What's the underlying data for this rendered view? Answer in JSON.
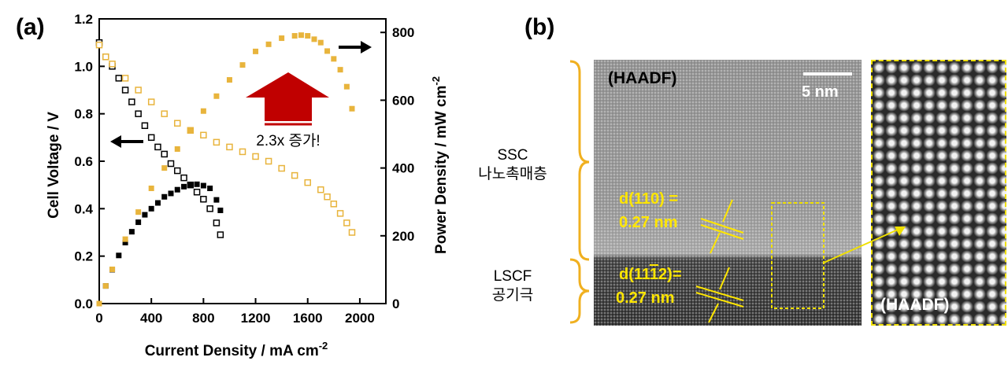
{
  "panel_a_label": "(a)",
  "panel_b_label": "(b)",
  "annotation": "2.3x 증가!",
  "chart_data": {
    "type": "scatter",
    "xlabel": "Current Density / mA cm",
    "xlabel_exp": "-2",
    "ylabel_left": "Cell Voltage / V",
    "ylabel_right": "Power Density / mW cm",
    "ylabel_right_exp": "-2",
    "xlim": [
      0,
      2200
    ],
    "ylim_left": [
      0,
      1.2
    ],
    "ylim_right": [
      0,
      840
    ],
    "x_ticks": [
      0,
      400,
      800,
      1200,
      1600,
      2000
    ],
    "x_tick_labels": [
      "0",
      "400",
      "800",
      "1200",
      "1600",
      "2000"
    ],
    "yleft_ticks": [
      0,
      0.2,
      0.4,
      0.6,
      0.8,
      1.0,
      1.2
    ],
    "yleft_tick_labels": [
      "0.0",
      "0.2",
      "0.4",
      "0.6",
      "0.8",
      "1.0",
      "1.2"
    ],
    "yright_ticks": [
      0,
      200,
      400,
      600,
      800
    ],
    "yright_tick_labels": [
      "0",
      "200",
      "400",
      "600",
      "800"
    ],
    "colors": {
      "gold": "#e8b43c",
      "black": "#000000",
      "arrow_red": "#c00000"
    },
    "series": [
      {
        "axis": "left",
        "marker": "open-square",
        "color": "#000000",
        "x": [
          0,
          50,
          100,
          150,
          200,
          250,
          300,
          350,
          400,
          450,
          500,
          550,
          600,
          650,
          700,
          750,
          800,
          850,
          900,
          930
        ],
        "y": [
          1.1,
          1.04,
          1.0,
          0.95,
          0.9,
          0.85,
          0.8,
          0.75,
          0.7,
          0.66,
          0.63,
          0.59,
          0.56,
          0.53,
          0.5,
          0.47,
          0.44,
          0.4,
          0.34,
          0.29
        ]
      },
      {
        "axis": "left",
        "marker": "open-square",
        "color": "#e8b43c",
        "x": [
          0,
          50,
          100,
          200,
          300,
          400,
          500,
          600,
          700,
          800,
          900,
          1000,
          1100,
          1200,
          1300,
          1400,
          1500,
          1600,
          1700,
          1750,
          1800,
          1850,
          1900,
          1940
        ],
        "y": [
          1.09,
          1.04,
          1.01,
          0.95,
          0.9,
          0.85,
          0.8,
          0.76,
          0.73,
          0.71,
          0.68,
          0.66,
          0.64,
          0.62,
          0.6,
          0.57,
          0.54,
          0.51,
          0.48,
          0.45,
          0.42,
          0.38,
          0.34,
          0.3
        ]
      },
      {
        "axis": "right",
        "marker": "filled-square",
        "color": "#000000",
        "x": [
          0,
          50,
          100,
          150,
          200,
          250,
          300,
          350,
          400,
          450,
          500,
          550,
          600,
          650,
          700,
          750,
          800,
          850,
          900,
          930
        ],
        "y": [
          0,
          52,
          100,
          142,
          180,
          212,
          240,
          262,
          280,
          297,
          315,
          325,
          336,
          345,
          350,
          352,
          348,
          340,
          306,
          275
        ]
      },
      {
        "axis": "right",
        "marker": "filled-square",
        "color": "#e8b43c",
        "x": [
          0,
          50,
          100,
          200,
          300,
          400,
          500,
          600,
          700,
          800,
          900,
          1000,
          1100,
          1200,
          1300,
          1400,
          1500,
          1550,
          1600,
          1650,
          1700,
          1750,
          1800,
          1850,
          1900,
          1940
        ],
        "y": [
          0,
          52,
          101,
          190,
          270,
          340,
          400,
          456,
          511,
          568,
          612,
          660,
          704,
          744,
          765,
          783,
          790,
          792,
          790,
          780,
          770,
          745,
          722,
          690,
          640,
          575
        ]
      }
    ]
  },
  "tem": {
    "haadf_main": "(HAADF)",
    "scale_bar": "5 nm",
    "d110_line1": "d(110) =",
    "d110_line2": "0.27 nm",
    "d112_line1": "d(11",
    "d112_bar": "1",
    "d112_line1_end": "2)=",
    "d112_line2": "0.27 nm",
    "haadf_inset": "(HAADF)",
    "ssc_line1": "SSC",
    "ssc_line2": "나노촉매층",
    "lscf_line1": "LSCF",
    "lscf_line2": "공기극"
  }
}
